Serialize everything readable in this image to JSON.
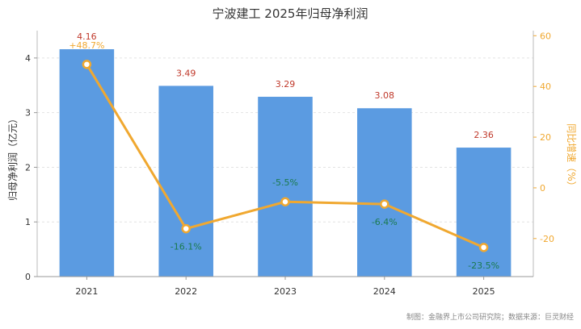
{
  "chart_data": {
    "type": "bar",
    "title": "宁波建工 2025年归母净利润",
    "categories": [
      "2021",
      "2022",
      "2023",
      "2024",
      "2025"
    ],
    "series": [
      {
        "name": "",
        "type": "bar",
        "axis": "left",
        "values": [
          4.16,
          3.49,
          3.29,
          3.08,
          2.36
        ],
        "labels": [
          "4.16",
          "3.49",
          "3.29",
          "3.08",
          "2.36"
        ]
      },
      {
        "name": "",
        "type": "line",
        "axis": "right",
        "values": [
          48.7,
          -16.1,
          -5.5,
          -6.4,
          -23.5
        ],
        "labels": [
          "+48.7%",
          "-16.1%",
          "-5.5%",
          "-6.4%",
          "-23.5%"
        ]
      }
    ],
    "ylabel_left": "归母净利润（亿元）",
    "ylabel_right": "同比增速（%）",
    "ylim_left": [
      0,
      4.5
    ],
    "ylim_right": [
      -35,
      62
    ],
    "yticks_left": [
      0,
      1,
      2,
      3,
      4
    ],
    "yticks_right": [
      -20,
      0,
      20,
      40,
      60
    ],
    "grid": true,
    "colors": {
      "bar": "#5b9be1",
      "line": "#f0a830",
      "bar_label": "#c0392b",
      "line_label": "#1a7a4f"
    },
    "source": "制图：金融界上市公司研究院；数据来源：巨灵财经"
  }
}
